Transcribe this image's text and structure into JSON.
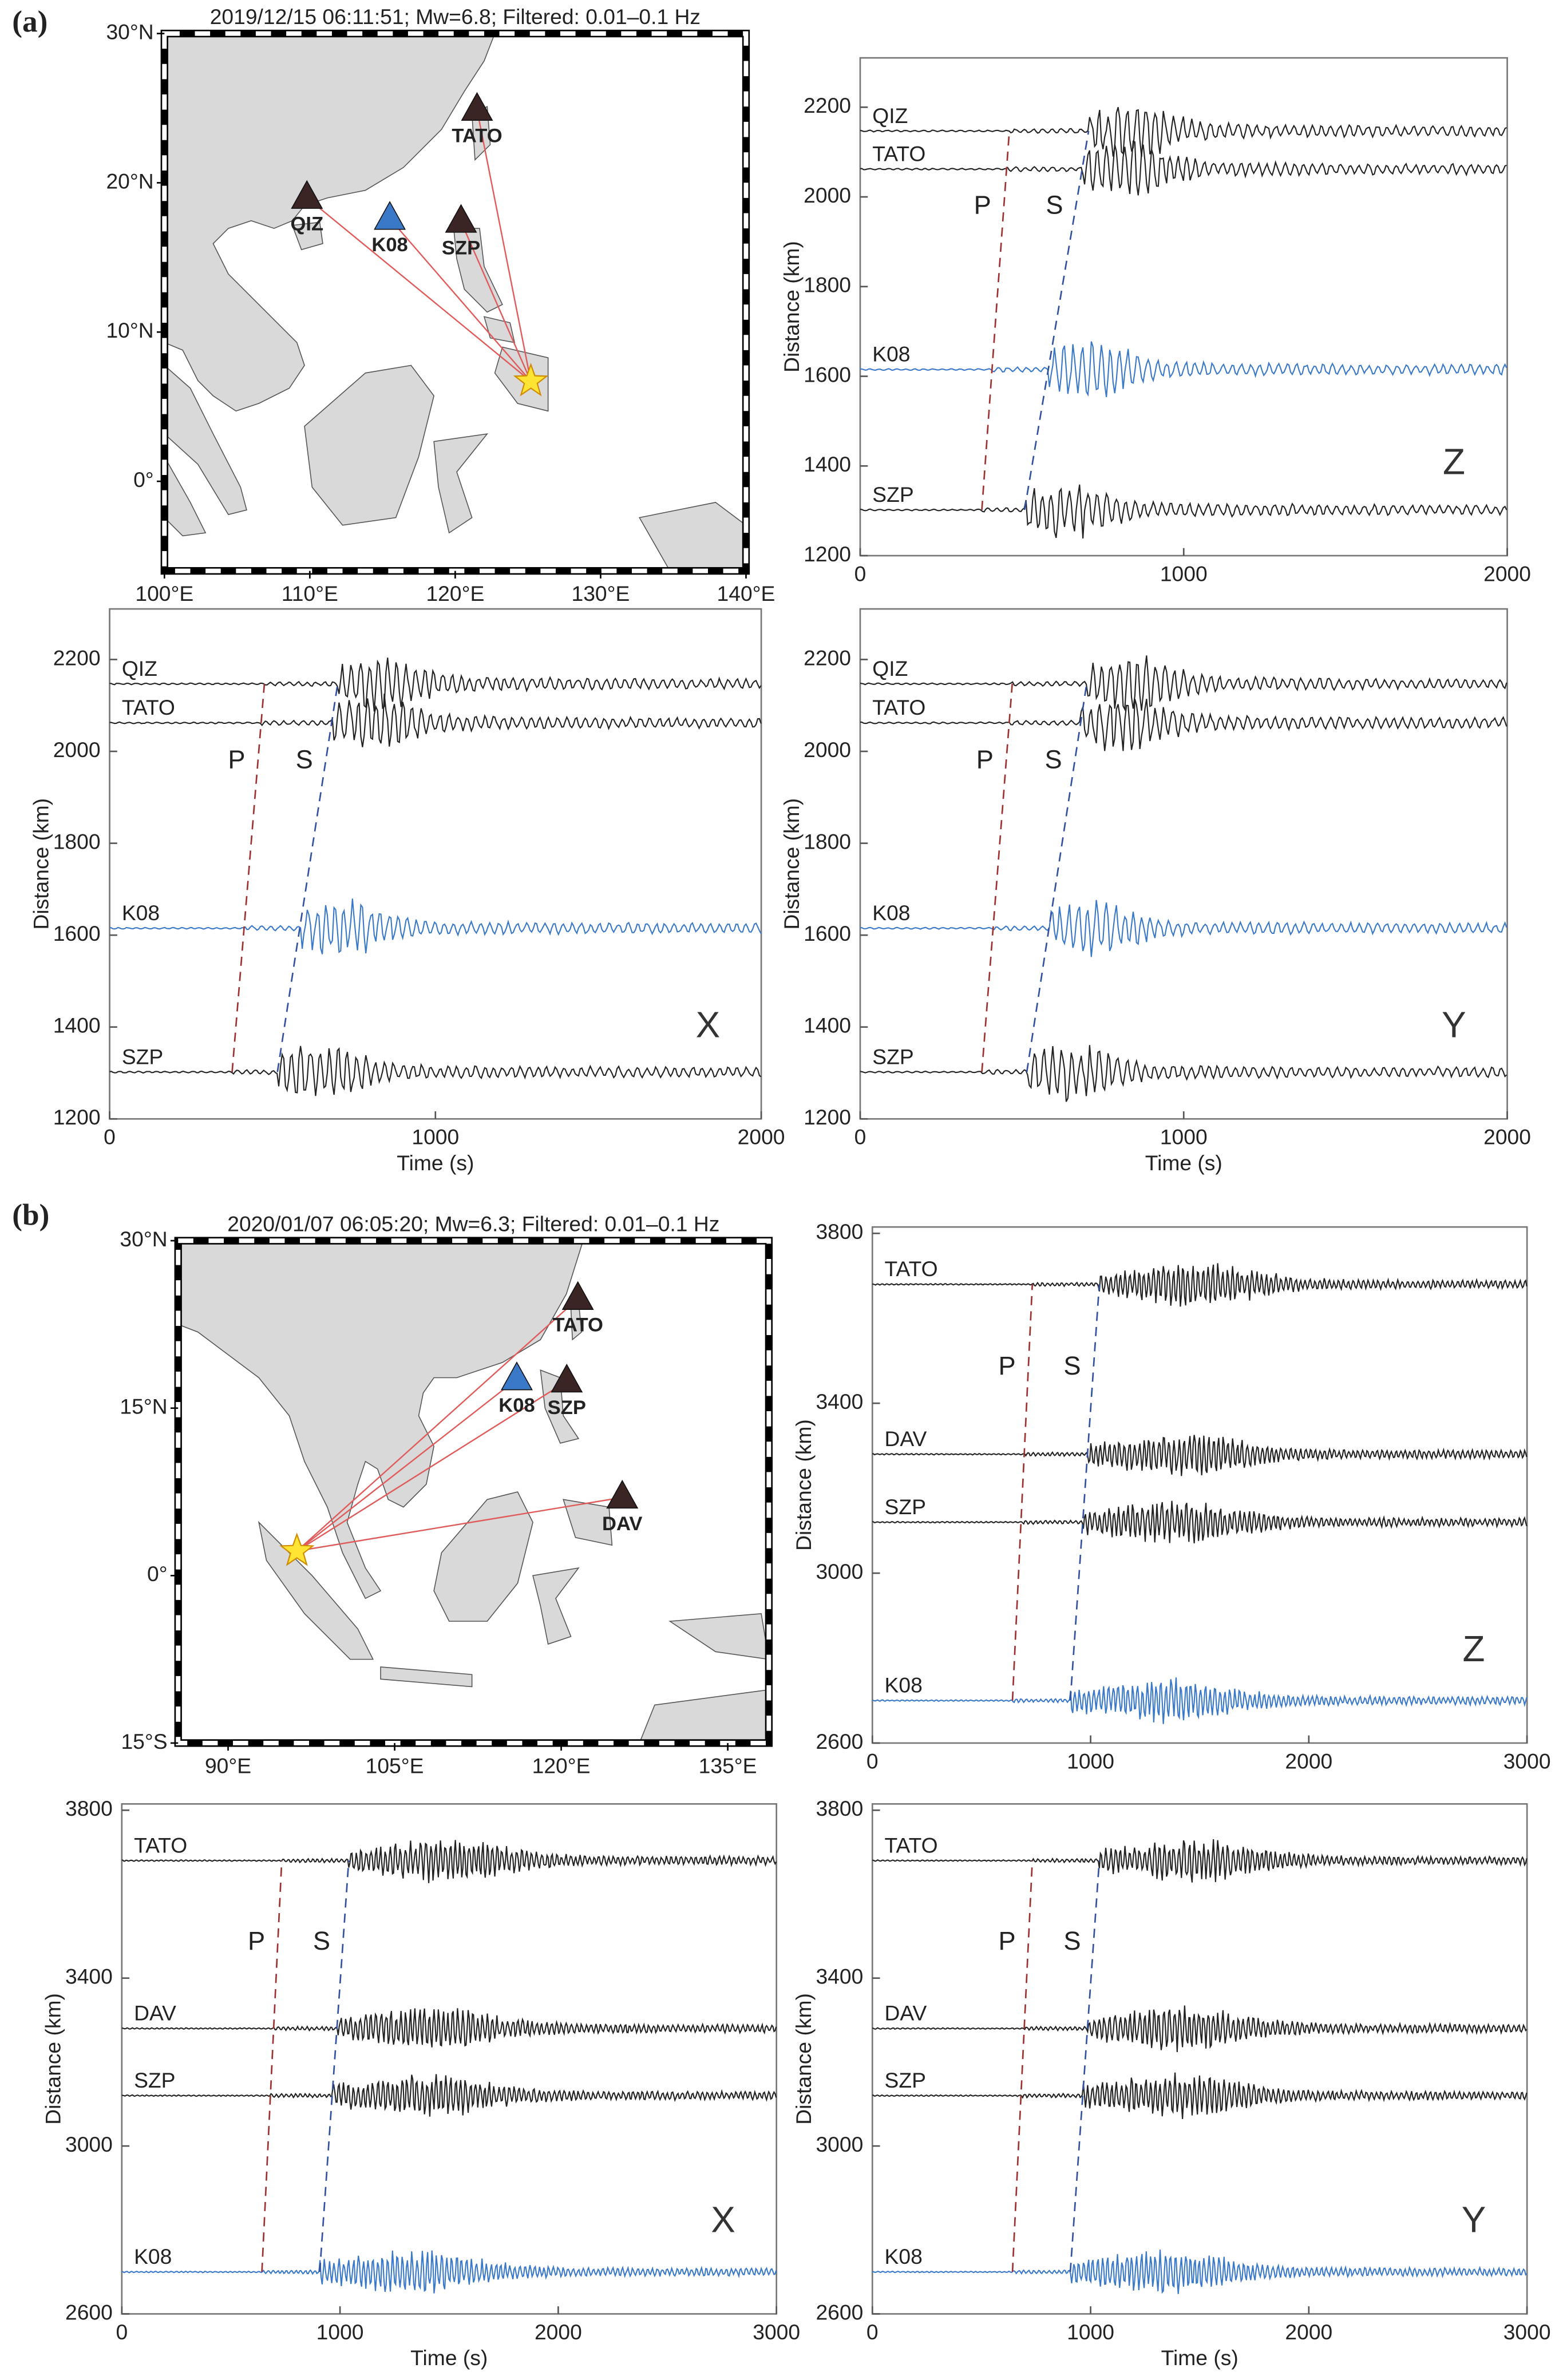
{
  "chart_data": [
    {
      "type": "map",
      "panel_label": "(a)",
      "title": "2019/12/15 06:11:51; Mw=6.8; Filtered: 0.01–0.1 Hz",
      "xlim": [
        100,
        140
      ],
      "ylim": [
        -6,
        30
      ],
      "xticks": [
        {
          "value": 100,
          "label": "100°E"
        },
        {
          "value": 110,
          "label": "110°E"
        },
        {
          "value": 120,
          "label": "120°E"
        },
        {
          "value": 130,
          "label": "130°E"
        },
        {
          "value": 140,
          "label": "140°E"
        }
      ],
      "yticks": [
        {
          "value": 0,
          "label": "0°"
        },
        {
          "value": 10,
          "label": "10°N"
        },
        {
          "value": 20,
          "label": "20°N"
        },
        {
          "value": 30,
          "label": "30°N"
        }
      ],
      "stations": [
        {
          "name": "TATO",
          "lon": 121.5,
          "lat": 24.9,
          "color": "#3a2424"
        },
        {
          "name": "QIZ",
          "lon": 109.8,
          "lat": 19.0,
          "color": "#3a2424"
        },
        {
          "name": "K08",
          "lon": 115.5,
          "lat": 17.6,
          "color": "#3a78c8"
        },
        {
          "name": "SZP",
          "lon": 120.4,
          "lat": 17.4,
          "color": "#3a2424"
        }
      ],
      "epicenter": {
        "lon": 125.2,
        "lat": 6.7
      }
    },
    {
      "type": "seismogram",
      "component": "Z",
      "ylabel": "Distance (km)",
      "xlim": [
        0,
        2000
      ],
      "ylim": [
        1200,
        2310
      ],
      "xticks": [
        0,
        1000,
        2000
      ],
      "yticks": [
        1200,
        1400,
        1600,
        1800,
        2000,
        2200
      ],
      "traces": [
        {
          "name": "QIZ",
          "color": "#222222",
          "distance": 2147
        },
        {
          "name": "TATO",
          "color": "#222222",
          "distance": 2062
        },
        {
          "name": "K08",
          "color": "#3a78c8",
          "distance": 1615
        },
        {
          "name": "SZP",
          "color": "#222222",
          "distance": 1302
        }
      ],
      "p_line": {
        "label": "P",
        "color": "#a03030",
        "time": [
          376,
          461
        ],
        "distance": [
          1302,
          2147
        ]
      },
      "s_line": {
        "label": "S",
        "color": "#3050a0",
        "time": [
          508,
          706
        ],
        "distance": [
          1302,
          2147
        ]
      }
    },
    {
      "type": "seismogram",
      "component": "X",
      "xlabel": "Time (s)",
      "ylabel": "Distance (km)",
      "xlim": [
        0,
        2000
      ],
      "ylim": [
        1200,
        2310
      ],
      "xticks": [
        0,
        1000,
        2000
      ],
      "yticks": [
        1200,
        1400,
        1600,
        1800,
        2000,
        2200
      ],
      "traces": [
        {
          "name": "QIZ",
          "color": "#222222",
          "distance": 2147
        },
        {
          "name": "TATO",
          "color": "#222222",
          "distance": 2062
        },
        {
          "name": "K08",
          "color": "#3a78c8",
          "distance": 1615
        },
        {
          "name": "SZP",
          "color": "#222222",
          "distance": 1302
        }
      ],
      "p_line": {
        "label": "P",
        "color": "#a03030",
        "time": [
          376,
          475
        ],
        "distance": [
          1302,
          2147
        ]
      },
      "s_line": {
        "label": "S",
        "color": "#3050a0",
        "time": [
          515,
          700
        ],
        "distance": [
          1302,
          2147
        ]
      }
    },
    {
      "type": "seismogram",
      "component": "Y",
      "xlabel": "Time (s)",
      "ylabel": "Distance (km)",
      "xlim": [
        0,
        2000
      ],
      "ylim": [
        1200,
        2310
      ],
      "xticks": [
        0,
        1000,
        2000
      ],
      "yticks": [
        1200,
        1400,
        1600,
        1800,
        2000,
        2200
      ],
      "traces": [
        {
          "name": "QIZ",
          "color": "#222222",
          "distance": 2147
        },
        {
          "name": "TATO",
          "color": "#222222",
          "distance": 2062
        },
        {
          "name": "K08",
          "color": "#3a78c8",
          "distance": 1615
        },
        {
          "name": "SZP",
          "color": "#222222",
          "distance": 1302
        }
      ],
      "p_line": {
        "label": "P",
        "color": "#a03030",
        "time": [
          376,
          470
        ],
        "distance": [
          1302,
          2147
        ]
      },
      "s_line": {
        "label": "S",
        "color": "#3050a0",
        "time": [
          515,
          700
        ],
        "distance": [
          1302,
          2147
        ]
      }
    },
    {
      "type": "map",
      "panel_label": "(b)",
      "title": "2020/01/07 06:05:20; Mw=6.3; Filtered: 0.01–0.1 Hz",
      "xlim": [
        85.5,
        138.7
      ],
      "ylim": [
        -15,
        30
      ],
      "xticks": [
        {
          "value": 90,
          "label": "90°E"
        },
        {
          "value": 105,
          "label": "105°E"
        },
        {
          "value": 120,
          "label": "120°E"
        },
        {
          "value": 135,
          "label": "135°E"
        }
      ],
      "yticks": [
        {
          "value": -15,
          "label": "15°S"
        },
        {
          "value": 0,
          "label": "0°"
        },
        {
          "value": 15,
          "label": "15°N"
        },
        {
          "value": 30,
          "label": "30°N"
        }
      ],
      "stations": [
        {
          "name": "TATO",
          "lon": 121.5,
          "lat": 24.8,
          "color": "#3a2424"
        },
        {
          "name": "K08",
          "lon": 116.0,
          "lat": 17.6,
          "color": "#3a78c8"
        },
        {
          "name": "SZP",
          "lon": 120.5,
          "lat": 17.4,
          "color": "#3a2424"
        },
        {
          "name": "DAV",
          "lon": 125.5,
          "lat": 7.0,
          "color": "#3a2424"
        }
      ],
      "epicenter": {
        "lon": 96.2,
        "lat": 2.2
      }
    },
    {
      "type": "seismogram",
      "component": "Z",
      "ylabel": "Distance (km)",
      "xlim": [
        0,
        3000
      ],
      "ylim": [
        2600,
        3815
      ],
      "xticks": [
        0,
        1000,
        2000,
        3000
      ],
      "yticks": [
        2600,
        3000,
        3400,
        3800
      ],
      "traces": [
        {
          "name": "TATO",
          "color": "#222222",
          "distance": 3680
        },
        {
          "name": "DAV",
          "color": "#222222",
          "distance": 3280
        },
        {
          "name": "SZP",
          "color": "#222222",
          "distance": 3120
        },
        {
          "name": "K08",
          "color": "#3a78c8",
          "distance": 2700
        }
      ],
      "p_line": {
        "label": "P",
        "color": "#a03030",
        "time": [
          642,
          733
        ],
        "distance": [
          2700,
          3680
        ]
      },
      "s_line": {
        "label": "S",
        "color": "#3050a0",
        "time": [
          907,
          1040
        ],
        "distance": [
          2700,
          3680
        ]
      }
    },
    {
      "type": "seismogram",
      "component": "X",
      "xlabel": "Time (s)",
      "ylabel": "Distance (km)",
      "xlim": [
        0,
        3000
      ],
      "ylim": [
        2600,
        3815
      ],
      "xticks": [
        0,
        1000,
        2000,
        3000
      ],
      "yticks": [
        2600,
        3000,
        3400,
        3800
      ],
      "traces": [
        {
          "name": "TATO",
          "color": "#222222",
          "distance": 3680
        },
        {
          "name": "DAV",
          "color": "#222222",
          "distance": 3280
        },
        {
          "name": "SZP",
          "color": "#222222",
          "distance": 3120
        },
        {
          "name": "K08",
          "color": "#3a78c8",
          "distance": 2700
        }
      ],
      "p_line": {
        "label": "P",
        "color": "#a03030",
        "time": [
          642,
          733
        ],
        "distance": [
          2700,
          3680
        ]
      },
      "s_line": {
        "label": "S",
        "color": "#3050a0",
        "time": [
          907,
          1040
        ],
        "distance": [
          2700,
          3680
        ]
      }
    },
    {
      "type": "seismogram",
      "component": "Y",
      "xlabel": "Time (s)",
      "ylabel": "Distance (km)",
      "xlim": [
        0,
        3000
      ],
      "ylim": [
        2600,
        3815
      ],
      "xticks": [
        0,
        1000,
        2000,
        3000
      ],
      "yticks": [
        2600,
        3000,
        3400,
        3800
      ],
      "traces": [
        {
          "name": "TATO",
          "color": "#222222",
          "distance": 3680
        },
        {
          "name": "DAV",
          "color": "#222222",
          "distance": 3280
        },
        {
          "name": "SZP",
          "color": "#222222",
          "distance": 3120
        },
        {
          "name": "K08",
          "color": "#3a78c8",
          "distance": 2700
        }
      ],
      "p_line": {
        "label": "P",
        "color": "#a03030",
        "time": [
          642,
          733
        ],
        "distance": [
          2700,
          3680
        ]
      },
      "s_line": {
        "label": "S",
        "color": "#3050a0",
        "time": [
          907,
          1040
        ],
        "distance": [
          2700,
          3680
        ]
      }
    }
  ]
}
